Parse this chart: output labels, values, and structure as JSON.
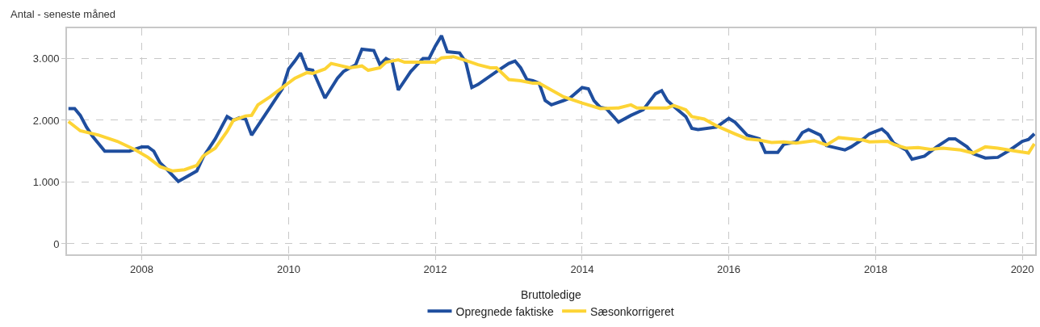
{
  "chart_data": {
    "type": "line",
    "ylabel": "Antal - seneste måned",
    "legend_title": "Bruttoledige",
    "legend": "bottom",
    "grid": true,
    "line_style": "solid",
    "marker": "none",
    "xlim": [
      "2006-12-25",
      "2020-03-05"
    ],
    "xticks": [
      "2008",
      "2010",
      "2012",
      "2014",
      "2016",
      "2018",
      "2020"
    ],
    "ylim": [
      -170,
      3490
    ],
    "yticks": [
      {
        "value": 0,
        "label": "0"
      },
      {
        "value": 1000,
        "label": "1.000"
      },
      {
        "value": 2000,
        "label": "2.000"
      },
      {
        "value": 3000,
        "label": "3.000"
      }
    ],
    "series": [
      {
        "name": "Opregnede faktiske",
        "color": "#1f4e9e",
        "x": [
          "2007-01",
          "2007-02",
          "2007-03",
          "2007-04",
          "2007-05",
          "2007-07",
          "2007-11",
          "2008-01",
          "2008-02",
          "2008-03",
          "2008-04",
          "2008-05",
          "2008-07",
          "2008-10",
          "2008-11",
          "2009-01",
          "2009-03",
          "2009-04",
          "2009-05",
          "2009-06",
          "2009-07",
          "2009-10",
          "2009-12",
          "2010-01",
          "2010-02",
          "2010-03",
          "2010-04",
          "2010-05",
          "2010-07",
          "2010-09",
          "2010-10",
          "2010-12",
          "2011-01",
          "2011-03",
          "2011-04",
          "2011-05",
          "2011-06",
          "2011-07",
          "2011-09",
          "2011-11",
          "2011-12",
          "2012-01",
          "2012-02",
          "2012-03",
          "2012-05",
          "2012-06",
          "2012-07",
          "2012-08",
          "2012-11",
          "2013-01",
          "2013-02",
          "2013-03",
          "2013-04",
          "2013-05",
          "2013-06",
          "2013-07",
          "2013-08",
          "2013-10",
          "2013-11",
          "2014-01",
          "2014-02",
          "2014-03",
          "2014-04",
          "2014-05",
          "2014-07",
          "2014-09",
          "2014-11",
          "2015-01",
          "2015-02",
          "2015-03",
          "2015-04",
          "2015-06",
          "2015-07",
          "2015-08",
          "2015-11",
          "2016-01",
          "2016-02",
          "2016-04",
          "2016-06",
          "2016-07",
          "2016-09",
          "2016-10",
          "2016-12",
          "2017-01",
          "2017-02",
          "2017-04",
          "2017-05",
          "2017-08",
          "2017-09",
          "2017-11",
          "2017-12",
          "2018-02",
          "2018-03",
          "2018-04",
          "2018-06",
          "2018-07",
          "2018-09",
          "2018-11",
          "2019-01",
          "2019-02",
          "2019-04",
          "2019-05",
          "2019-07",
          "2019-09",
          "2019-11",
          "2020-01",
          "2020-02",
          "2020-03"
        ],
        "values": [
          2190,
          2190,
          2080,
          1890,
          1740,
          1500,
          1500,
          1570,
          1570,
          1500,
          1310,
          1220,
          1010,
          1180,
          1400,
          1700,
          2060,
          2000,
          2040,
          2020,
          1760,
          2210,
          2510,
          2830,
          2960,
          3090,
          2830,
          2810,
          2360,
          2680,
          2790,
          2900,
          3150,
          3130,
          2900,
          3000,
          2940,
          2490,
          2790,
          3000,
          3000,
          3200,
          3370,
          3110,
          3090,
          2940,
          2530,
          2580,
          2790,
          2920,
          2960,
          2850,
          2660,
          2640,
          2600,
          2320,
          2250,
          2320,
          2360,
          2530,
          2510,
          2320,
          2210,
          2190,
          1970,
          2080,
          2170,
          2430,
          2480,
          2320,
          2230,
          2060,
          1870,
          1850,
          1890,
          2030,
          1970,
          1760,
          1700,
          1480,
          1480,
          1610,
          1650,
          1800,
          1850,
          1760,
          1590,
          1520,
          1570,
          1700,
          1780,
          1860,
          1780,
          1630,
          1520,
          1370,
          1420,
          1570,
          1700,
          1700,
          1570,
          1460,
          1390,
          1400,
          1520,
          1660,
          1690,
          1780
        ]
      },
      {
        "name": "Sæsonkorrigeret",
        "color": "#fdd435",
        "x": [
          "2007-01",
          "2007-03",
          "2007-06",
          "2007-09",
          "2007-12",
          "2008-02",
          "2008-04",
          "2008-06",
          "2008-08",
          "2008-10",
          "2008-11",
          "2009-01",
          "2009-03",
          "2009-04",
          "2009-06",
          "2009-07",
          "2009-08",
          "2009-10",
          "2009-12",
          "2010-02",
          "2010-04",
          "2010-05",
          "2010-07",
          "2010-08",
          "2010-11",
          "2011-01",
          "2011-02",
          "2011-04",
          "2011-05",
          "2011-07",
          "2011-08",
          "2012-01",
          "2012-02",
          "2012-04",
          "2012-06",
          "2012-08",
          "2012-10",
          "2012-11",
          "2013-01",
          "2013-03",
          "2013-05",
          "2013-06",
          "2013-08",
          "2013-10",
          "2014-01",
          "2014-04",
          "2014-07",
          "2014-09",
          "2014-10",
          "2015-03",
          "2015-04",
          "2015-06",
          "2015-07",
          "2015-09",
          "2015-11",
          "2016-02",
          "2016-04",
          "2016-06",
          "2016-08",
          "2016-10",
          "2016-12",
          "2017-03",
          "2017-05",
          "2017-07",
          "2017-09",
          "2017-11",
          "2017-12",
          "2018-03",
          "2018-04",
          "2018-06",
          "2018-08",
          "2018-10",
          "2018-12",
          "2019-03",
          "2019-05",
          "2019-07",
          "2019-09",
          "2019-12",
          "2020-02",
          "2020-03"
        ],
        "values": [
          1980,
          1830,
          1760,
          1660,
          1520,
          1400,
          1250,
          1180,
          1200,
          1270,
          1420,
          1550,
          1820,
          2000,
          2070,
          2080,
          2250,
          2380,
          2530,
          2680,
          2770,
          2760,
          2830,
          2920,
          2850,
          2880,
          2810,
          2850,
          2940,
          2980,
          2940,
          2940,
          3010,
          3030,
          2970,
          2900,
          2850,
          2850,
          2660,
          2640,
          2600,
          2600,
          2490,
          2380,
          2280,
          2190,
          2200,
          2250,
          2200,
          2200,
          2240,
          2170,
          2060,
          2020,
          1910,
          1780,
          1700,
          1680,
          1640,
          1650,
          1630,
          1670,
          1600,
          1720,
          1700,
          1680,
          1650,
          1660,
          1610,
          1550,
          1560,
          1530,
          1550,
          1520,
          1470,
          1570,
          1550,
          1500,
          1470,
          1620
        ]
      }
    ]
  }
}
